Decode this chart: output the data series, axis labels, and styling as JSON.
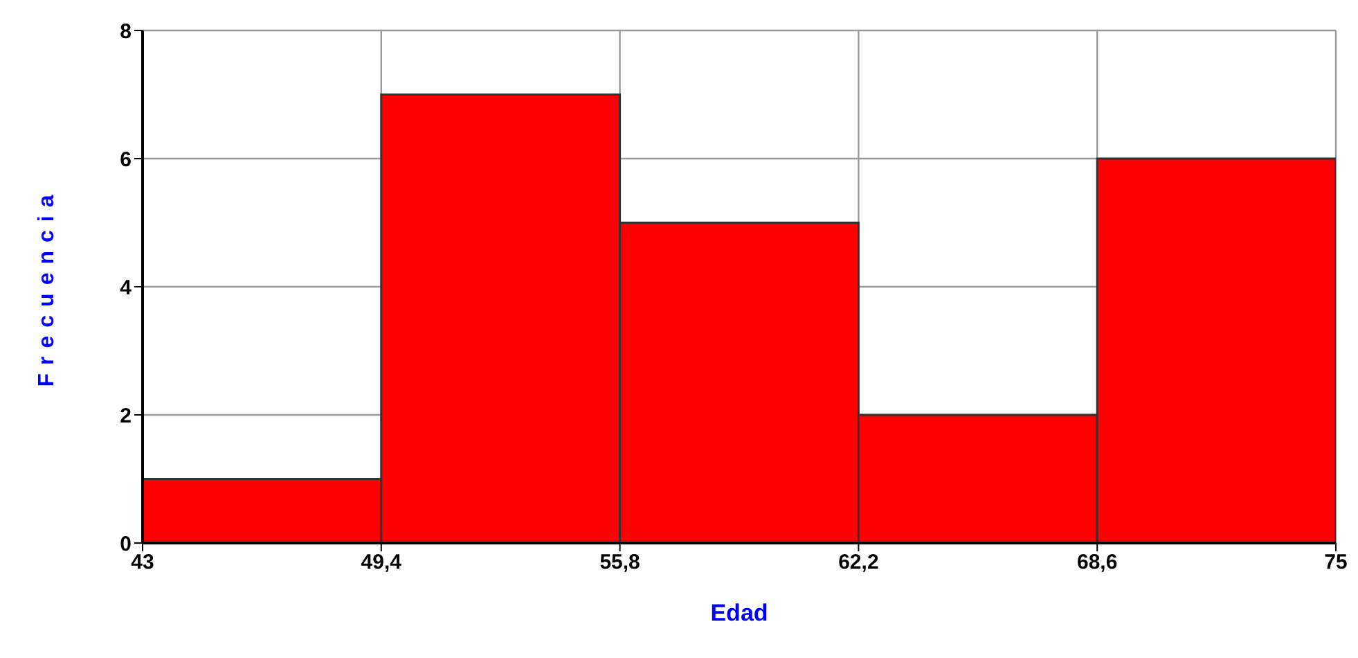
{
  "chart_data": {
    "type": "histogram",
    "xlabel": "Edad",
    "ylabel": "Frecuencia",
    "bins": [
      43,
      49.4,
      55.8,
      62.2,
      68.6,
      75
    ],
    "values": [
      1,
      7,
      5,
      2,
      6
    ],
    "color": "#ff0000",
    "xlim": [
      43,
      75
    ],
    "xticks": [
      43,
      {
        "value": 49.4,
        "label": "49,4"
      },
      {
        "value": 55.8,
        "label": "55,8"
      },
      {
        "value": 62.2,
        "label": "62,2"
      },
      {
        "value": 68.6,
        "label": "68,6"
      },
      75
    ],
    "ylim": [
      0,
      8
    ],
    "yticks": [
      0,
      2,
      4,
      6,
      8
    ],
    "grid": true
  }
}
